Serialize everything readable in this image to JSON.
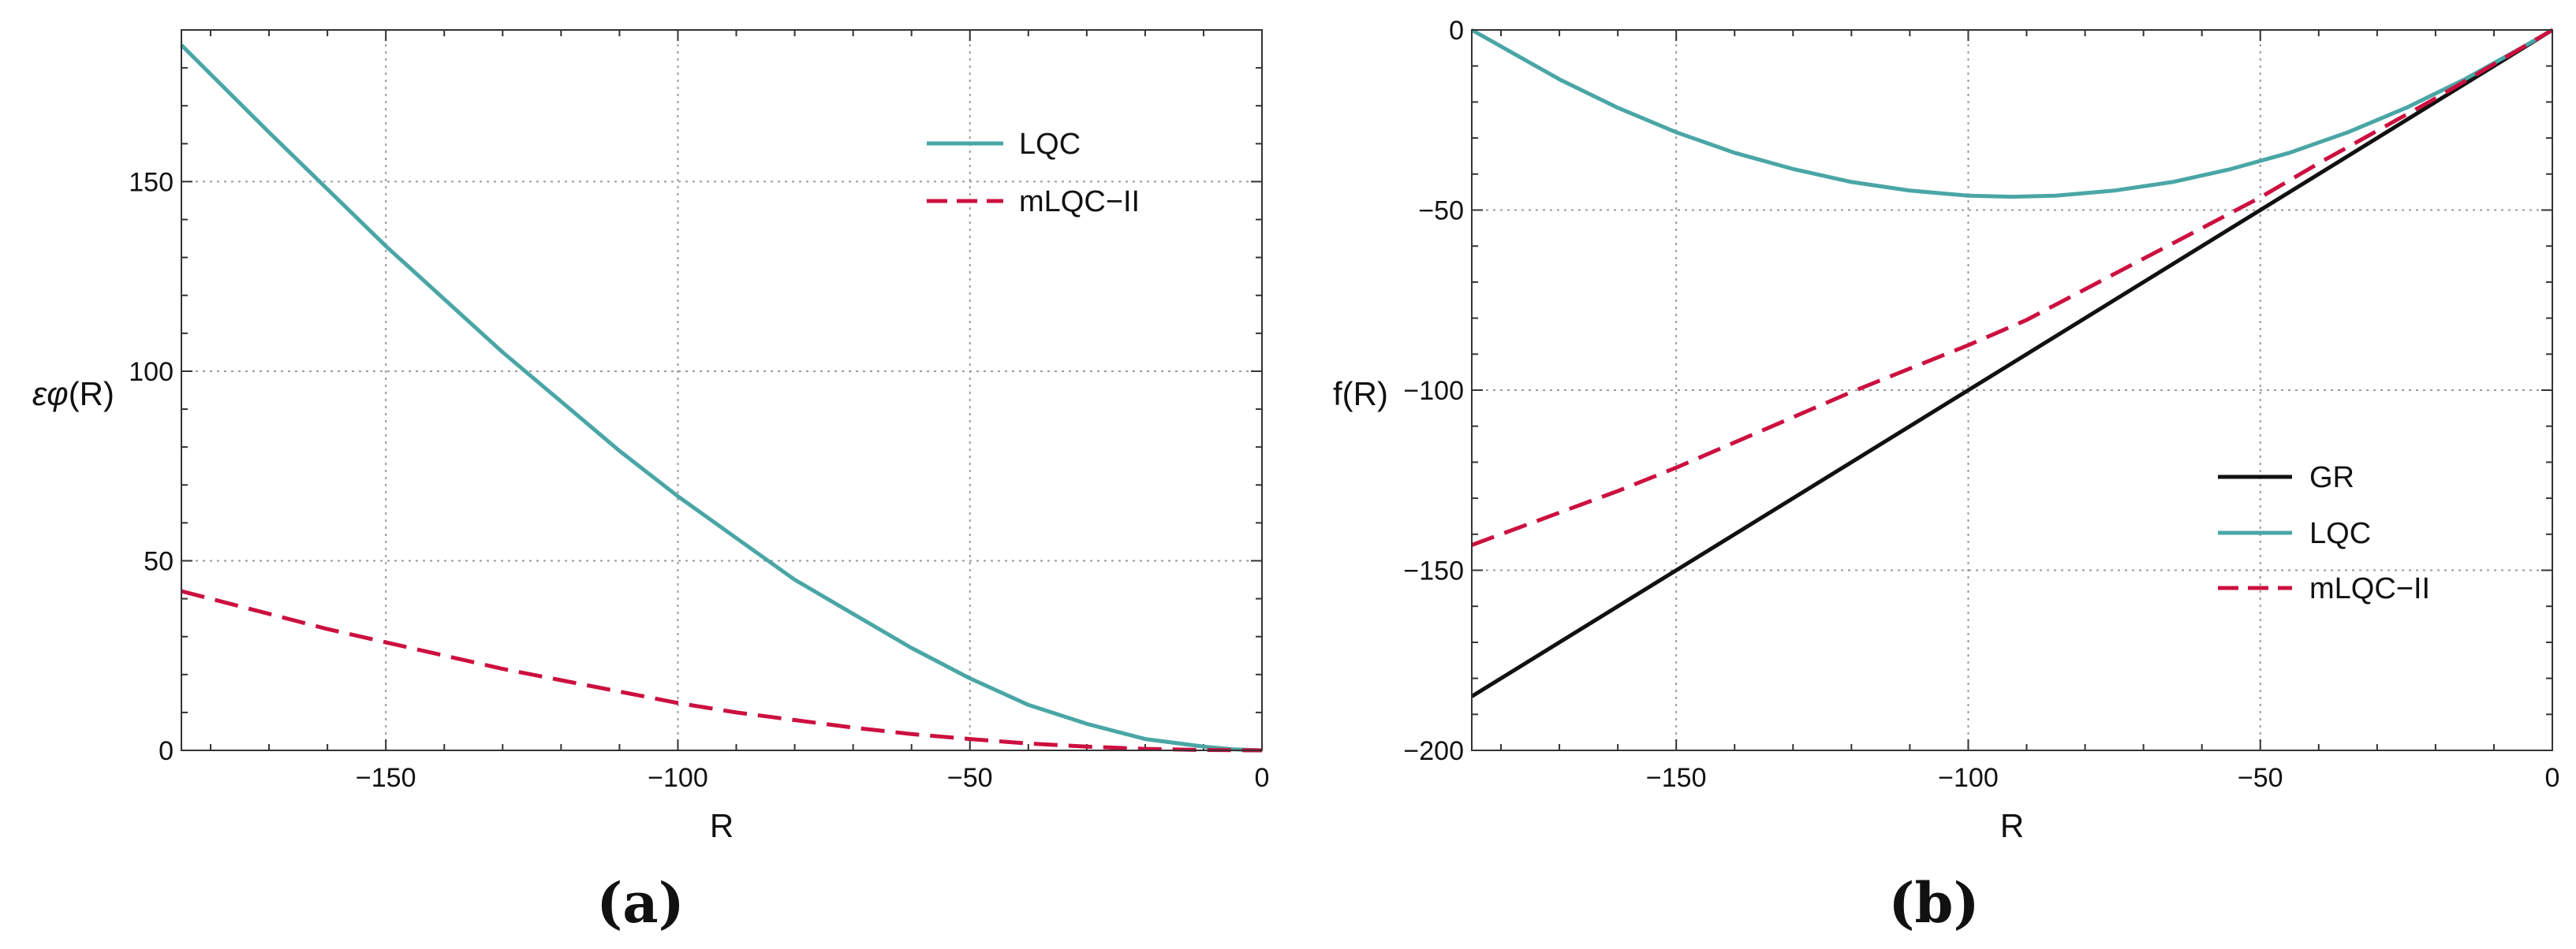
{
  "chart_data": [
    {
      "type": "line",
      "panel_label": "(a)",
      "xlabel": "R",
      "ylabel_prefix": "ε",
      "ylabel_main": "φ",
      "ylabel_suffix": "(R)",
      "xlim": [
        -185,
        0
      ],
      "ylim": [
        0,
        190
      ],
      "xticks": [
        -150,
        -100,
        -50,
        0
      ],
      "xtick_labels": [
        "−150",
        "−100",
        "−50",
        "0"
      ],
      "yticks": [
        0,
        50,
        100,
        150
      ],
      "ytick_labels": [
        "0",
        "50",
        "100",
        "150"
      ],
      "grid": true,
      "legend": "top-right",
      "series": [
        {
          "name": "LQC",
          "color": "#4aa6a6",
          "style": "solid",
          "x": [
            -185,
            -170,
            -160,
            -150,
            -140,
            -130,
            -120,
            -110,
            -100,
            -90,
            -80,
            -70,
            -60,
            -50,
            -40,
            -30,
            -20,
            -10,
            -5,
            0
          ],
          "y": [
            186,
            163,
            148,
            133,
            119,
            105,
            92,
            79,
            67,
            56,
            45,
            36,
            27,
            19,
            12,
            7,
            3,
            1,
            0.3,
            0
          ]
        },
        {
          "name": "mLQC−II",
          "color": "#cc1040",
          "style": "dashed",
          "x": [
            -185,
            -170,
            -160,
            -150,
            -140,
            -130,
            -120,
            -110,
            -100,
            -90,
            -80,
            -70,
            -60,
            -50,
            -40,
            -30,
            -20,
            -10,
            0
          ],
          "y": [
            42,
            36,
            32,
            28.5,
            25,
            21.5,
            18.5,
            15.5,
            12.5,
            10,
            8,
            6,
            4.3,
            3,
            1.8,
            1,
            0.4,
            0.1,
            0
          ]
        }
      ]
    },
    {
      "type": "line",
      "panel_label": "(b)",
      "xlabel": "R",
      "ylabel": "f(R)",
      "xlim": [
        -185,
        0
      ],
      "ylim": [
        -200,
        0
      ],
      "xticks": [
        -150,
        -100,
        -50,
        0
      ],
      "xtick_labels": [
        "−150",
        "−100",
        "−50",
        "0"
      ],
      "yticks": [
        -200,
        -150,
        -100,
        -50,
        0
      ],
      "ytick_labels": [
        "−200",
        "−150",
        "−100",
        "−50",
        "0"
      ],
      "grid": true,
      "legend": "bottom-right",
      "series": [
        {
          "name": "GR",
          "color": "#111111",
          "style": "solid",
          "x": [
            -185,
            0
          ],
          "y": [
            -185,
            0
          ]
        },
        {
          "name": "LQC",
          "color": "#4aa6a6",
          "style": "solid",
          "x": [
            -185,
            -170,
            -160,
            -150,
            -140,
            -130,
            -120,
            -110,
            -100,
            -92.5,
            -85,
            -75,
            -65,
            -55,
            -45,
            -35,
            -25,
            -15,
            -5,
            0
          ],
          "y": [
            0,
            -13.7,
            -21.6,
            -28.4,
            -34.1,
            -38.6,
            -42.2,
            -44.6,
            -46.0,
            -46.3,
            -46.0,
            -44.6,
            -42.2,
            -38.6,
            -34.1,
            -28.4,
            -21.6,
            -13.7,
            -4.7,
            0
          ]
        },
        {
          "name": "mLQC−II",
          "color": "#cc1040",
          "style": "dashed",
          "x": [
            -185,
            -170,
            -160,
            -150,
            -140,
            -130,
            -120,
            -110,
            -100,
            -90,
            -80,
            -70,
            -60,
            -50,
            -40,
            -30,
            -20,
            -10,
            0
          ],
          "y": [
            -143,
            -134,
            -128,
            -121.5,
            -114.5,
            -107.5,
            -100.5,
            -94,
            -87.5,
            -80.5,
            -72,
            -63.5,
            -55,
            -46.5,
            -37,
            -28,
            -19,
            -9.5,
            0
          ]
        }
      ]
    }
  ]
}
